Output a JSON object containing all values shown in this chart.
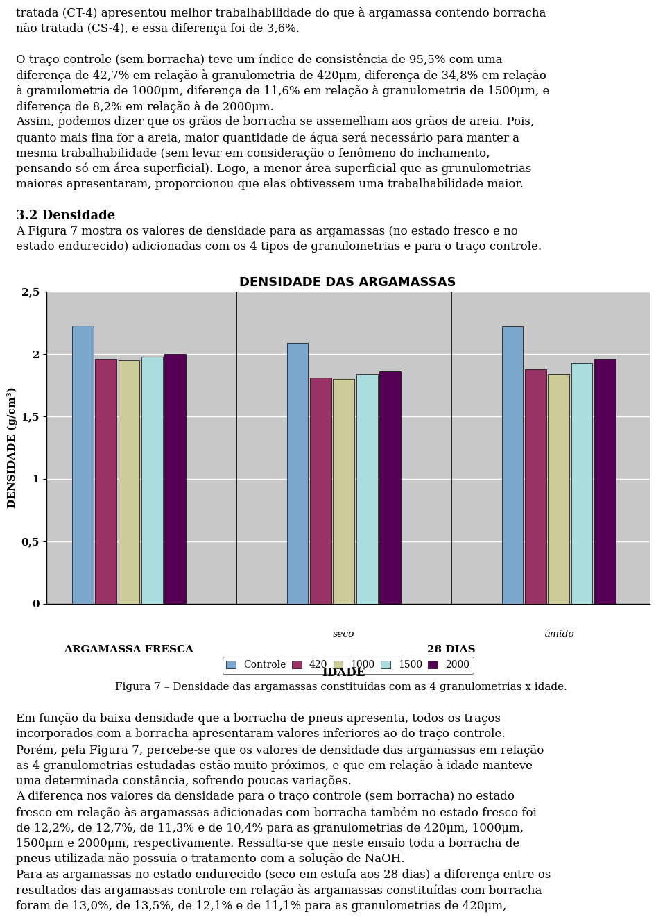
{
  "title_text": "DENSIDADE DAS ARGAMASSAS",
  "ylabel": "DENSIDADE (g/cm³)",
  "xlabel": "IDADE",
  "ylim": [
    0,
    2.5
  ],
  "yticks": [
    0,
    0.5,
    1,
    1.5,
    2,
    2.5
  ],
  "ytick_labels": [
    "0",
    "0,5",
    "1",
    "1,5",
    "2",
    "2,5"
  ],
  "series_labels": [
    "Controle",
    "420",
    "1000",
    "1500",
    "2000"
  ],
  "colors": [
    "#7BA7CC",
    "#993366",
    "#CCCC99",
    "#AADDDD",
    "#550055"
  ],
  "bar_data": [
    [
      2.23,
      1.96,
      1.95,
      1.98,
      2.0
    ],
    [
      2.09,
      1.81,
      1.8,
      1.84,
      1.86
    ],
    [
      2.22,
      1.88,
      1.84,
      1.93,
      1.96
    ]
  ],
  "chart_bg": "#C8C8C8",
  "caption": "Figura 7 – Densidade das argamassas constituídas com as 4 granulometrias x idade.",
  "top_lines": [
    [
      "tratada (CT-4) apresentou melhor trabalhabilidade do que à argamassa contendo borracha",
      false
    ],
    [
      "não tratada (CS-4), e essa diferença foi de 3,6%.",
      false
    ],
    [
      "",
      false
    ],
    [
      "O traço controle (sem borracha) teve um índice de consistência de 95,5% com uma",
      false
    ],
    [
      "diferença de 42,7% em relação à granulometria de 420μm, diferença de 34,8% em relação",
      false
    ],
    [
      "à granulometria de 1000μm, diferença de 11,6% em relação à granulometria de 1500μm, e",
      false
    ],
    [
      "diferença de 8,2% em relação à de 2000μm.",
      false
    ],
    [
      "Assim, podemos dizer que os grãos de borracha se assemelham aos grãos de areia. Pois,",
      false
    ],
    [
      "quanto mais fina for a areia, maior quantidade de água será necessário para manter a",
      false
    ],
    [
      "mesma trabalhabilidade (sem levar em consideração o fenômeno do inchamento,",
      false
    ],
    [
      "pensando só em área superficial). Logo, a menor área superficial que as grunulometrias",
      false
    ],
    [
      "maiores apresentaram, proporcionou que elas obtivessem uma trabalhabilidade maior.",
      false
    ],
    [
      "",
      false
    ],
    [
      "3.2 Densidade",
      true
    ],
    [
      "A Figura 7 mostra os valores de densidade para as argamassas (no estado fresco e no",
      false
    ],
    [
      "estado endurecido) adicionadas com os 4 tipos de granulometrias e para o traço controle.",
      false
    ]
  ],
  "bottom_lines": [
    [
      "Figura 7 – Densidade das argamassas constituídas com as 4 granulometrias x idade.",
      false,
      "center"
    ],
    [
      "",
      false,
      "left"
    ],
    [
      "Em função da baixa densidade que a borracha de pneus apresenta, todos os traços",
      false,
      "left"
    ],
    [
      "incorporados com a borracha apresentaram valores inferiores ao do traço controle.",
      false,
      "left"
    ],
    [
      "Porém, pela Figura 7, percebe-se que os valores de densidade das argamassas em relação",
      false,
      "left"
    ],
    [
      "as 4 granulometrias estudadas estão muito próximos, e que em relação à idade manteve",
      false,
      "left"
    ],
    [
      "uma determinada constância, sofrendo poucas variações.",
      false,
      "left"
    ],
    [
      "A diferença nos valores da densidade para o traço controle (sem borracha) no estado",
      false,
      "left"
    ],
    [
      "fresco em relação às argamassas adicionadas com borracha também no estado fresco foi",
      false,
      "left"
    ],
    [
      "de 12,2%, de 12,7%, de 11,3% e de 10,4% para as granulometrias de 420μm, 1000μm,",
      false,
      "left"
    ],
    [
      "1500μm e 2000μm, respectivamente. Ressalta-se que neste ensaio toda a borracha de",
      false,
      "left"
    ],
    [
      "pneus utilizada não possuia o tratamento com a solução de NaOH.",
      false,
      "left"
    ],
    [
      "Para as argamassas no estado endurecido (seco em estufa aos 28 dias) a diferença entre os",
      false,
      "left"
    ],
    [
      "resultados das argamassas controle em relação às argamassas constituídas com borracha",
      false,
      "left"
    ],
    [
      "foram de 13,0%, de 13,5%, de 12,1% e de 11,1% para as granulometrias de 420μm,",
      false,
      "left"
    ]
  ]
}
